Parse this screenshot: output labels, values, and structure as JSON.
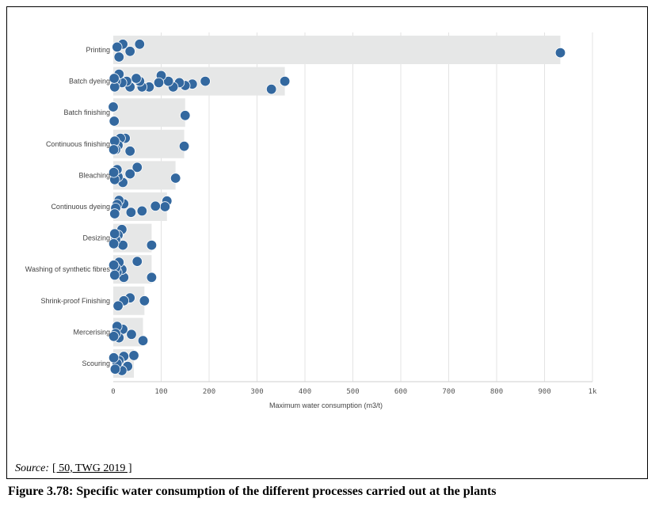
{
  "figure": {
    "source_label": "Source:",
    "source_ref": "[ 50, TWG 2019 ]",
    "caption": "Figure 3.78:  Specific water consumption of the different processes carried out at the plants"
  },
  "chart_data": {
    "type": "bar",
    "orientation": "horizontal",
    "xlabel": "Maximum water consumption (m3/t)",
    "xlim": [
      0,
      1000
    ],
    "xticks": [
      0,
      100,
      200,
      300,
      400,
      500,
      600,
      700,
      800,
      900,
      1000
    ],
    "xtick_labels": [
      "0",
      "100",
      "200",
      "300",
      "400",
      "500",
      "600",
      "700",
      "800",
      "900",
      "1k"
    ],
    "grid": true,
    "bar_color": "#e6e7e7",
    "point_color": "#33689f",
    "categories": [
      "Printing",
      "Batch dyeing",
      "Batch finishing",
      "Continuous finishing",
      "Bleaching",
      "Continuous dyeing",
      "Desizing",
      "Washing of synthetic fibres",
      "Shrink-proof Finishing",
      "Mercerising",
      "Scouring"
    ],
    "values": [
      933,
      358,
      150,
      148,
      130,
      112,
      80,
      80,
      65,
      62,
      43
    ],
    "points": [
      [
        [
          933,
          0.1
        ],
        [
          20,
          -0.2
        ],
        [
          55,
          -0.2
        ],
        [
          35,
          0.05
        ],
        [
          12,
          0.25
        ],
        [
          8,
          -0.1
        ]
      ],
      [
        [
          358,
          0.0
        ],
        [
          330,
          0.28
        ],
        [
          192,
          0.0
        ],
        [
          165,
          0.1
        ],
        [
          150,
          0.15
        ],
        [
          138,
          0.05
        ],
        [
          125,
          0.2
        ],
        [
          115,
          0.0
        ],
        [
          100,
          -0.2
        ],
        [
          95,
          0.05
        ],
        [
          75,
          0.2
        ],
        [
          60,
          0.2
        ],
        [
          55,
          0.0
        ],
        [
          48,
          -0.1
        ],
        [
          35,
          0.2
        ],
        [
          28,
          0.0
        ],
        [
          18,
          0.05
        ],
        [
          12,
          -0.25
        ],
        [
          5,
          0.0
        ],
        [
          3,
          0.2
        ],
        [
          2,
          -0.1
        ]
      ],
      [
        [
          150,
          0.1
        ],
        [
          2,
          0.3
        ],
        [
          0,
          -0.2
        ]
      ],
      [
        [
          148,
          0.08
        ],
        [
          35,
          0.25
        ],
        [
          25,
          -0.2
        ],
        [
          15,
          -0.2
        ],
        [
          10,
          0.05
        ],
        [
          5,
          0.2
        ],
        [
          3,
          -0.1
        ],
        [
          1,
          0.2
        ]
      ],
      [
        [
          130,
          0.1
        ],
        [
          50,
          -0.28
        ],
        [
          35,
          -0.05
        ],
        [
          20,
          0.25
        ],
        [
          10,
          0.05
        ],
        [
          8,
          -0.2
        ],
        [
          3,
          0.15
        ],
        [
          1,
          -0.1
        ]
      ],
      [
        [
          112,
          -0.2
        ],
        [
          108,
          0.0
        ],
        [
          88,
          -0.02
        ],
        [
          60,
          0.15
        ],
        [
          37,
          0.2
        ],
        [
          22,
          -0.1
        ],
        [
          12,
          -0.22
        ],
        [
          8,
          -0.08
        ],
        [
          5,
          0.05
        ],
        [
          3,
          0.25
        ]
      ],
      [
        [
          80,
          0.25
        ],
        [
          20,
          0.25
        ],
        [
          18,
          -0.3
        ],
        [
          10,
          -0.1
        ],
        [
          5,
          0.05
        ],
        [
          3,
          -0.15
        ],
        [
          1,
          0.2
        ]
      ],
      [
        [
          80,
          0.28
        ],
        [
          50,
          -0.28
        ],
        [
          22,
          0.28
        ],
        [
          18,
          0.0
        ],
        [
          12,
          -0.25
        ],
        [
          8,
          0.1
        ],
        [
          5,
          -0.05
        ],
        [
          3,
          0.2
        ],
        [
          1,
          -0.15
        ]
      ],
      [
        [
          65,
          0.0
        ],
        [
          35,
          -0.1
        ],
        [
          22,
          0.0
        ],
        [
          10,
          0.18
        ]
      ],
      [
        [
          62,
          0.3
        ],
        [
          38,
          0.08
        ],
        [
          20,
          -0.1
        ],
        [
          12,
          0.2
        ],
        [
          8,
          -0.2
        ],
        [
          5,
          0.05
        ],
        [
          1,
          0.15
        ]
      ],
      [
        [
          43,
          -0.28
        ],
        [
          30,
          0.1
        ],
        [
          22,
          -0.25
        ],
        [
          18,
          0.25
        ],
        [
          12,
          -0.1
        ],
        [
          8,
          0.0
        ],
        [
          4,
          0.2
        ],
        [
          1,
          -0.2
        ]
      ]
    ]
  }
}
